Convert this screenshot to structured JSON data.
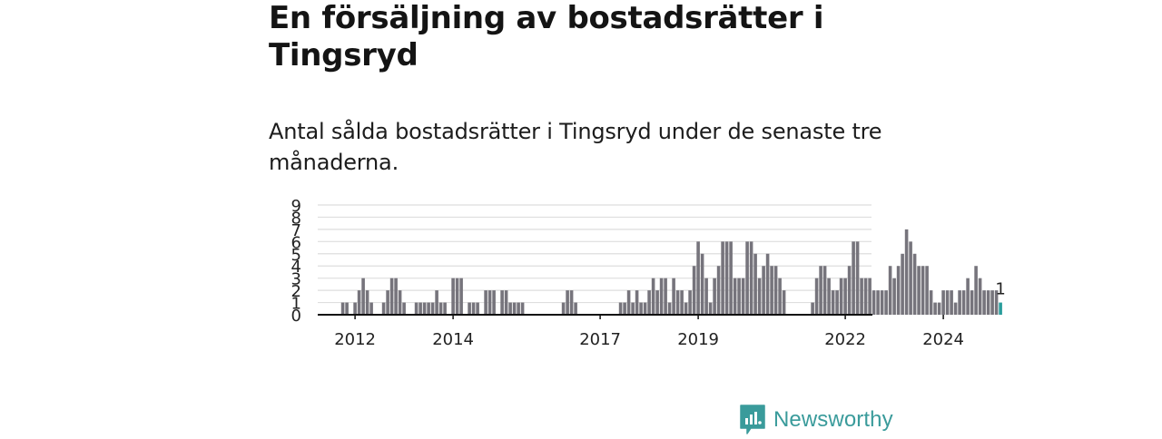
{
  "title": "En försäljning av bostadsrätter i Tingsryd",
  "subtitle": "Antal sålda bostadsrätter i Tingsryd under de senaste tre månaderna.",
  "brand": {
    "name": "Newsworthy",
    "icon": "bar-chart-logo-icon"
  },
  "colors": {
    "bar": "#76747c",
    "highlight": "#2a9d9c",
    "grid": "#dedede",
    "axis": "#111111",
    "brand": "#3a9b9b"
  },
  "chart_data": {
    "type": "bar",
    "title": "",
    "xlabel": "",
    "ylabel": "",
    "ylim": [
      0,
      9
    ],
    "y_ticks": [
      0,
      1,
      2,
      3,
      4,
      5,
      6,
      7,
      8,
      9
    ],
    "x_ticks": [
      "2012",
      "2014",
      "2017",
      "2019",
      "2022",
      "2024"
    ],
    "grid": true,
    "series": [
      {
        "values": [
          1,
          1,
          0,
          1,
          2,
          3,
          2,
          1,
          0,
          0,
          1,
          2,
          3,
          3,
          2,
          1,
          0,
          0,
          1,
          1,
          1,
          1,
          1,
          2,
          1,
          1,
          0,
          3,
          3,
          3,
          0,
          1,
          1,
          1,
          0,
          2,
          2,
          2,
          0,
          2,
          2,
          1,
          1,
          1,
          1,
          0,
          0,
          0,
          0,
          0,
          0,
          0,
          0,
          0,
          1,
          2,
          2,
          1,
          0,
          0,
          0,
          0,
          0,
          0,
          0,
          0,
          0,
          0,
          1,
          1,
          2,
          1,
          2,
          1,
          1,
          2,
          3,
          2,
          3,
          3,
          1,
          3,
          2,
          2,
          1,
          2,
          4,
          6,
          5,
          3,
          1,
          3,
          4,
          6,
          6,
          6,
          3,
          3,
          3,
          6,
          6,
          5,
          3,
          4,
          5,
          4,
          4,
          3,
          2,
          0,
          0,
          0,
          0,
          0,
          0,
          1,
          3,
          4,
          4,
          3,
          2,
          2,
          3,
          3,
          4,
          6,
          6,
          3,
          3,
          3,
          2,
          2,
          2,
          2,
          4,
          3,
          4,
          5,
          7,
          6,
          5,
          4,
          4,
          4,
          2,
          1,
          1,
          2,
          2,
          2,
          1,
          2,
          2,
          3,
          2,
          4,
          3,
          2,
          2,
          2,
          2,
          1
        ],
        "highlight_last": true,
        "last_label": "1",
        "start_month": "2011-10"
      }
    ]
  }
}
